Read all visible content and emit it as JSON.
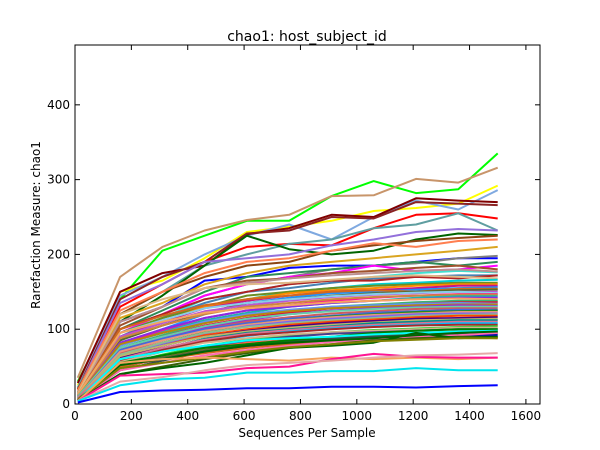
{
  "chart_data": {
    "type": "line",
    "title": "chao1: host_subject_id",
    "xlabel": "Sequences Per Sample",
    "ylabel": "Rarefaction Measure: chao1",
    "xlim": [
      0,
      1650
    ],
    "ylim": [
      0,
      480
    ],
    "xticks": [
      0,
      200,
      400,
      600,
      800,
      1000,
      1200,
      1400,
      1600
    ],
    "yticks": [
      0,
      100,
      200,
      300,
      400
    ],
    "grid": false,
    "legend": "none",
    "x": [
      10,
      160,
      310,
      460,
      610,
      760,
      910,
      1060,
      1210,
      1360,
      1500
    ],
    "series": [
      {
        "color": "#00ff00",
        "values": [
          30,
          140,
          205,
          225,
          245,
          245,
          278,
          298,
          282,
          287,
          335
        ]
      },
      {
        "color": "#c8956a",
        "values": [
          35,
          170,
          210,
          232,
          246,
          253,
          278,
          279,
          301,
          296,
          316
        ]
      },
      {
        "color": "#ffff00",
        "values": [
          25,
          150,
          165,
          195,
          230,
          237,
          245,
          258,
          262,
          268,
          292
        ]
      },
      {
        "color": "#7fa9e0",
        "values": [
          22,
          145,
          170,
          200,
          225,
          240,
          220,
          250,
          272,
          260,
          286
        ]
      },
      {
        "color": "#800000",
        "values": [
          28,
          150,
          175,
          185,
          227,
          235,
          253,
          250,
          275,
          272,
          270
        ]
      },
      {
        "color": "#8b2323",
        "values": [
          20,
          140,
          170,
          190,
          228,
          232,
          250,
          248,
          270,
          268,
          266
        ]
      },
      {
        "color": "#ff0000",
        "values": [
          20,
          130,
          160,
          190,
          210,
          214,
          212,
          235,
          253,
          255,
          248
        ]
      },
      {
        "color": "#5f9ea0",
        "values": [
          22,
          120,
          150,
          185,
          200,
          214,
          220,
          235,
          240,
          255,
          232
        ]
      },
      {
        "color": "#006400",
        "values": [
          15,
          110,
          145,
          185,
          225,
          207,
          200,
          205,
          220,
          228,
          226
        ]
      },
      {
        "color": "#9370db",
        "values": [
          18,
          135,
          160,
          190,
          195,
          200,
          212,
          220,
          230,
          234,
          232
        ]
      },
      {
        "color": "#8b4513",
        "values": [
          20,
          120,
          150,
          170,
          185,
          190,
          205,
          212,
          218,
          222,
          225
        ]
      },
      {
        "color": "#ff7f50",
        "values": [
          18,
          125,
          150,
          175,
          190,
          195,
          205,
          215,
          210,
          218,
          220
        ]
      },
      {
        "color": "#0000ff",
        "values": [
          12,
          110,
          130,
          165,
          170,
          182,
          185,
          185,
          190,
          195,
          195
        ]
      },
      {
        "color": "#daa520",
        "values": [
          15,
          115,
          135,
          160,
          175,
          185,
          190,
          195,
          200,
          205,
          210
        ]
      },
      {
        "color": "#808080",
        "values": [
          12,
          100,
          120,
          145,
          160,
          170,
          180,
          185,
          188,
          195,
          198
        ]
      },
      {
        "color": "#2e8b57",
        "values": [
          15,
          100,
          125,
          150,
          170,
          175,
          180,
          185,
          190,
          185,
          190
        ]
      },
      {
        "color": "#ff00ff",
        "values": [
          12,
          95,
          120,
          145,
          160,
          170,
          175,
          185,
          178,
          180,
          185
        ]
      },
      {
        "color": "#a0522d",
        "values": [
          15,
          105,
          130,
          155,
          165,
          168,
          175,
          178,
          182,
          185,
          180
        ]
      },
      {
        "color": "#40e0d0",
        "values": [
          12,
          95,
          115,
          140,
          150,
          160,
          165,
          170,
          175,
          178,
          176
        ]
      },
      {
        "color": "#bc8f8f",
        "values": [
          14,
          110,
          130,
          155,
          162,
          168,
          172,
          175,
          178,
          180,
          177
        ]
      },
      {
        "color": "#4682b4",
        "values": [
          12,
          90,
          115,
          135,
          150,
          155,
          162,
          168,
          170,
          172,
          172
        ]
      },
      {
        "color": "#b22222",
        "values": [
          12,
          100,
          120,
          140,
          150,
          160,
          165,
          165,
          170,
          168,
          172
        ]
      },
      {
        "color": "#deb887",
        "values": [
          14,
          120,
          140,
          155,
          160,
          162,
          166,
          170,
          172,
          170,
          168
        ]
      },
      {
        "color": "#00ced1",
        "values": [
          10,
          90,
          110,
          130,
          140,
          150,
          155,
          160,
          162,
          165,
          166
        ]
      },
      {
        "color": "#6b8e23",
        "values": [
          12,
          95,
          115,
          130,
          145,
          150,
          155,
          158,
          160,
          162,
          162
        ]
      },
      {
        "color": "#ff8c00",
        "values": [
          10,
          85,
          110,
          130,
          140,
          148,
          152,
          155,
          158,
          160,
          160
        ]
      },
      {
        "color": "#c71585",
        "values": [
          10,
          90,
          110,
          128,
          138,
          145,
          150,
          152,
          155,
          158,
          158
        ]
      },
      {
        "color": "#1e90ff",
        "values": [
          10,
          80,
          100,
          120,
          135,
          142,
          148,
          150,
          153,
          155,
          156
        ]
      },
      {
        "color": "#d2691e",
        "values": [
          12,
          100,
          118,
          132,
          140,
          145,
          150,
          152,
          150,
          154,
          154
        ]
      },
      {
        "color": "#556b2f",
        "values": [
          10,
          85,
          105,
          122,
          135,
          140,
          145,
          148,
          150,
          152,
          153
        ]
      },
      {
        "color": "#ba55d3",
        "values": [
          10,
          90,
          108,
          124,
          132,
          138,
          143,
          146,
          148,
          150,
          150
        ]
      },
      {
        "color": "#87ceeb",
        "values": [
          12,
          95,
          112,
          128,
          135,
          140,
          144,
          147,
          149,
          150,
          148
        ]
      },
      {
        "color": "#ff1493",
        "values": [
          10,
          80,
          98,
          115,
          125,
          132,
          138,
          142,
          145,
          147,
          147
        ]
      },
      {
        "color": "#cd853f",
        "values": [
          10,
          88,
          105,
          120,
          130,
          135,
          140,
          143,
          145,
          146,
          146
        ]
      },
      {
        "color": "#20b2aa",
        "values": [
          10,
          78,
          96,
          112,
          122,
          130,
          135,
          138,
          142,
          144,
          144
        ]
      },
      {
        "color": "#8a2be2",
        "values": [
          10,
          82,
          100,
          115,
          125,
          130,
          135,
          138,
          140,
          142,
          142
        ]
      },
      {
        "color": "#f4a460",
        "values": [
          12,
          95,
          110,
          122,
          128,
          132,
          136,
          138,
          140,
          141,
          140
        ]
      },
      {
        "color": "#3cb371",
        "values": [
          10,
          75,
          92,
          108,
          118,
          125,
          130,
          133,
          136,
          138,
          138
        ]
      },
      {
        "color": "#dc143c",
        "values": [
          10,
          72,
          90,
          105,
          115,
          122,
          128,
          131,
          134,
          136,
          136
        ]
      },
      {
        "color": "#6495ed",
        "values": [
          10,
          78,
          95,
          110,
          120,
          126,
          130,
          132,
          134,
          135,
          134
        ]
      },
      {
        "color": "#b8860b",
        "values": [
          10,
          80,
          95,
          108,
          118,
          124,
          128,
          130,
          132,
          133,
          133
        ]
      },
      {
        "color": "#9932cc",
        "values": [
          8,
          70,
          88,
          102,
          112,
          120,
          125,
          128,
          130,
          132,
          131
        ]
      },
      {
        "color": "#66cdaa",
        "values": [
          10,
          75,
          90,
          104,
          114,
          120,
          124,
          127,
          129,
          130,
          130
        ]
      },
      {
        "color": "#cd5c5c",
        "values": [
          8,
          68,
          85,
          100,
          110,
          116,
          121,
          124,
          127,
          128,
          128
        ]
      },
      {
        "color": "#4169e1",
        "values": [
          8,
          72,
          87,
          100,
          108,
          114,
          118,
          122,
          124,
          126,
          126
        ]
      },
      {
        "color": "#228b22",
        "values": [
          8,
          65,
          82,
          96,
          106,
          112,
          117,
          120,
          123,
          124,
          125
        ]
      },
      {
        "color": "#e9967a",
        "values": [
          8,
          70,
          85,
          98,
          106,
          112,
          116,
          119,
          121,
          123,
          123
        ]
      },
      {
        "color": "#7b68ee",
        "values": [
          8,
          64,
          80,
          94,
          104,
          110,
          114,
          117,
          120,
          121,
          121
        ]
      },
      {
        "color": "#8fbc8f",
        "values": [
          8,
          66,
          82,
          95,
          103,
          108,
          112,
          115,
          118,
          119,
          120
        ]
      },
      {
        "color": "#ff4500",
        "values": [
          8,
          60,
          78,
          92,
          100,
          106,
          110,
          113,
          116,
          118,
          118
        ]
      },
      {
        "color": "#4b0082",
        "values": [
          8,
          62,
          78,
          90,
          98,
          104,
          108,
          111,
          114,
          115,
          116
        ]
      },
      {
        "color": "#bdb76b",
        "values": [
          8,
          64,
          78,
          90,
          97,
          102,
          106,
          109,
          112,
          113,
          114
        ]
      },
      {
        "color": "#008b8b",
        "values": [
          8,
          58,
          74,
          87,
          95,
          100,
          104,
          108,
          110,
          112,
          112
        ]
      },
      {
        "color": "#db7093",
        "values": [
          8,
          60,
          75,
          86,
          94,
          99,
          103,
          106,
          108,
          110,
          110
        ]
      },
      {
        "color": "#00bfff",
        "values": [
          6,
          55,
          70,
          83,
          91,
          97,
          101,
          104,
          106,
          108,
          108
        ]
      },
      {
        "color": "#a52a2a",
        "values": [
          6,
          57,
          72,
          84,
          92,
          96,
          100,
          103,
          105,
          106,
          106
        ]
      },
      {
        "color": "#32cd32",
        "values": [
          6,
          52,
          66,
          78,
          86,
          92,
          96,
          99,
          101,
          103,
          104
        ]
      },
      {
        "color": "#d2b48c",
        "values": [
          6,
          56,
          70,
          82,
          88,
          93,
          96,
          98,
          100,
          102,
          102
        ]
      },
      {
        "color": "#483d8b",
        "values": [
          6,
          50,
          64,
          76,
          84,
          90,
          94,
          96,
          98,
          100,
          100
        ]
      },
      {
        "color": "#ff6347",
        "values": [
          6,
          48,
          62,
          74,
          82,
          86,
          90,
          93,
          95,
          97,
          98
        ]
      },
      {
        "color": "#556b2f",
        "values": [
          6,
          52,
          62,
          72,
          80,
          85,
          89,
          92,
          94,
          96,
          96
        ]
      },
      {
        "color": "#2f4f4f",
        "values": [
          5,
          45,
          58,
          70,
          78,
          83,
          87,
          90,
          92,
          94,
          94
        ]
      },
      {
        "color": "#0000cd",
        "values": [
          5,
          50,
          60,
          70,
          76,
          80,
          84,
          87,
          89,
          91,
          92
        ]
      },
      {
        "color": "#008000",
        "values": [
          6,
          55,
          65,
          75,
          80,
          85,
          90,
          95,
          98,
          100,
          100
        ]
      },
      {
        "color": "#00ffff",
        "values": [
          5,
          60,
          70,
          78,
          85,
          88,
          90,
          93,
          95,
          97,
          98
        ]
      },
      {
        "color": "#d2691e",
        "values": [
          6,
          50,
          60,
          68,
          75,
          80,
          84,
          86,
          88,
          90,
          88
        ]
      },
      {
        "color": "#ff69b4",
        "values": [
          5,
          45,
          55,
          65,
          72,
          78,
          83,
          86,
          90,
          92,
          95
        ]
      },
      {
        "color": "#006400",
        "values": [
          5,
          52,
          60,
          70,
          78,
          82,
          85,
          88,
          92,
          95,
          97
        ]
      },
      {
        "color": "#3a5f0b",
        "values": [
          5,
          40,
          50,
          60,
          68,
          75,
          80,
          85,
          88,
          90,
          90
        ]
      },
      {
        "color": "#006400",
        "values": [
          4,
          40,
          48,
          55,
          65,
          75,
          78,
          82,
          95,
          88,
          90
        ]
      },
      {
        "color": "#808000",
        "values": [
          5,
          48,
          55,
          62,
          70,
          76,
          80,
          84,
          86,
          88,
          88
        ]
      },
      {
        "color": "#f4a460",
        "values": [
          4,
          55,
          60,
          62,
          60,
          58,
          62,
          60,
          62,
          60,
          62
        ]
      },
      {
        "color": "#ff1493",
        "values": [
          4,
          38,
          40,
          42,
          48,
          50,
          60,
          67,
          63,
          62,
          62
        ]
      },
      {
        "color": "#e6a8a8",
        "values": [
          4,
          30,
          36,
          45,
          52,
          55,
          58,
          62,
          65,
          66,
          68
        ]
      },
      {
        "color": "#00e5ee",
        "values": [
          4,
          25,
          33,
          35,
          42,
          42,
          44,
          44,
          48,
          45,
          45
        ]
      },
      {
        "color": "#0000ff",
        "values": [
          2,
          16,
          18,
          19,
          21,
          21,
          23,
          23,
          22,
          24,
          25
        ]
      }
    ]
  }
}
